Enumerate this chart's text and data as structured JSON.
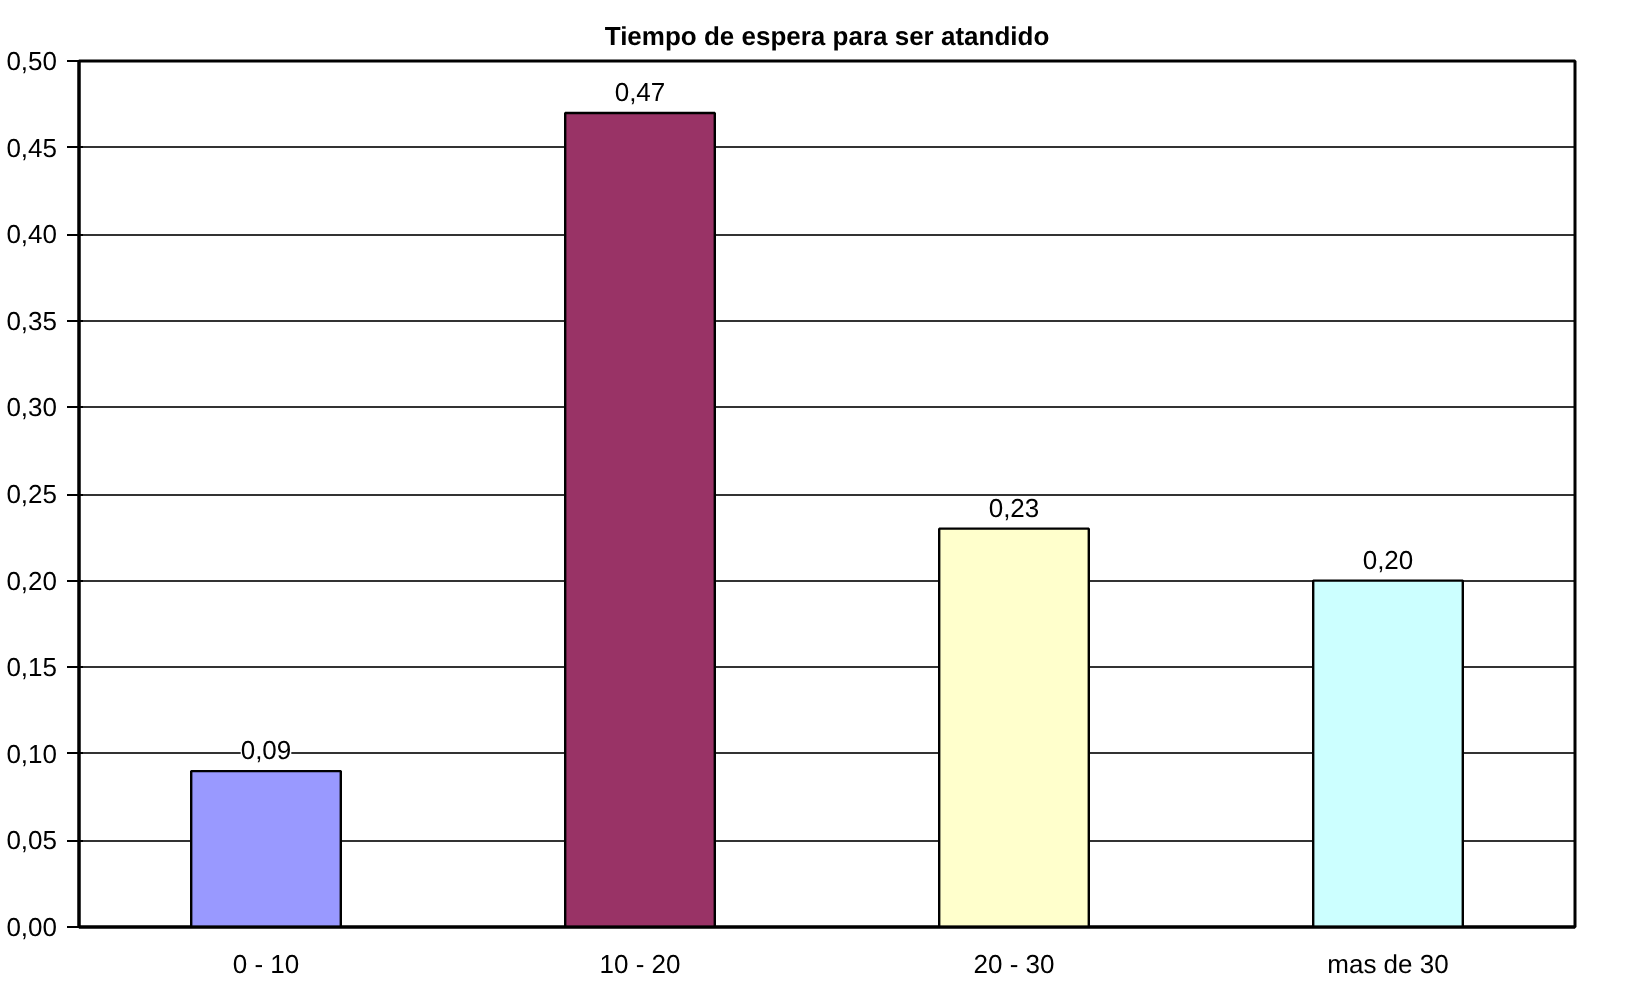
{
  "chart_data": {
    "type": "bar",
    "title": "Tiempo de espera para ser atandido",
    "categories": [
      "0 - 10",
      "10 - 20",
      "20 - 30",
      "mas de 30"
    ],
    "values": [
      0.09,
      0.47,
      0.23,
      0.2
    ],
    "colors": [
      "#9999ff",
      "#993366",
      "#ffffcc",
      "#ccffff"
    ],
    "value_labels": [
      "0,09",
      "0,47",
      "0,23",
      "0,20"
    ],
    "ylim": [
      0,
      0.5
    ],
    "yticks": [
      {
        "value": 0,
        "label": "0,00"
      },
      {
        "value": 0.05,
        "label": "0,05"
      },
      {
        "value": 0.1,
        "label": "0,10"
      },
      {
        "value": 0.15,
        "label": "0,15"
      },
      {
        "value": 0.2,
        "label": "0,20"
      },
      {
        "value": 0.25,
        "label": "0,25"
      },
      {
        "value": 0.3,
        "label": "0,30"
      },
      {
        "value": 0.35,
        "label": "0,35"
      },
      {
        "value": 0.4,
        "label": "0,40"
      },
      {
        "value": 0.45,
        "label": "0,45"
      },
      {
        "value": 0.5,
        "label": "0,50"
      }
    ],
    "grid": "y"
  }
}
